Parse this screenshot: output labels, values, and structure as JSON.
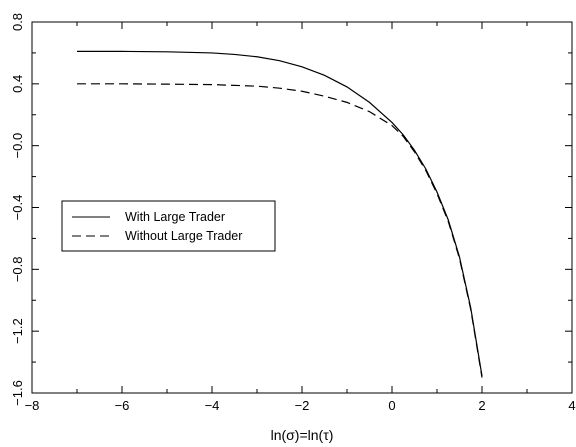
{
  "chart_data": {
    "type": "line",
    "title": "",
    "xlabel": "ln(σ)=ln(τ)",
    "ylabel": "",
    "xlim": [
      -8,
      4
    ],
    "ylim": [
      -1.6,
      0.8
    ],
    "xticks": [
      -8,
      -6,
      -4,
      -2,
      0,
      2,
      4
    ],
    "xtick_labels": [
      "−8",
      "−6",
      "−4",
      "−2",
      "0",
      "2",
      "4"
    ],
    "yticks": [
      -1.6,
      -1.2,
      -0.8,
      -0.4,
      0.0,
      0.4,
      0.8
    ],
    "ytick_labels": [
      "−1.6",
      "−1.2",
      "−0.8",
      "−0.4",
      "−0.0",
      "0.4",
      "0.8"
    ],
    "grid": false,
    "legend_position": "middle-left",
    "series": [
      {
        "name": "With Large Trader",
        "style": "solid",
        "color": "#000000",
        "x": [
          -7,
          -6,
          -5,
          -4,
          -3.5,
          -3,
          -2.5,
          -2,
          -1.5,
          -1,
          -0.5,
          0,
          0.25,
          0.5,
          0.75,
          1,
          1.25,
          1.5,
          1.75,
          2
        ],
        "y": [
          0.61,
          0.61,
          0.607,
          0.6,
          0.59,
          0.575,
          0.55,
          0.51,
          0.455,
          0.38,
          0.28,
          0.15,
          0.07,
          -0.03,
          -0.15,
          -0.3,
          -0.48,
          -0.72,
          -1.05,
          -1.49
        ]
      },
      {
        "name": "Without Large Trader",
        "style": "dashed",
        "color": "#000000",
        "x": [
          -7,
          -6,
          -5,
          -4,
          -3,
          -2.5,
          -2,
          -1.5,
          -1,
          -0.5,
          0,
          0.25,
          0.5,
          0.75,
          1,
          1.25,
          1.5,
          1.75,
          2
        ],
        "y": [
          0.4,
          0.4,
          0.398,
          0.395,
          0.385,
          0.372,
          0.352,
          0.32,
          0.28,
          0.22,
          0.13,
          0.06,
          -0.04,
          -0.16,
          -0.31,
          -0.49,
          -0.73,
          -1.06,
          -1.5
        ]
      }
    ]
  }
}
